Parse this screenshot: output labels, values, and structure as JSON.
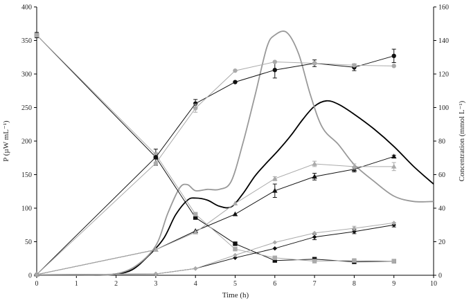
{
  "chart_data": {
    "type": "line",
    "title": "",
    "xlabel": "Time  (h)",
    "ylabel_left": "P (µW mL⁻¹)",
    "ylabel_right": "Concentration  (mmol L⁻¹)",
    "xlim": [
      0,
      10
    ],
    "ylim_left": [
      0,
      400
    ],
    "ylim_right": [
      0,
      160
    ],
    "x_ticks": [
      "0",
      "1",
      "2",
      "3",
      "4",
      "5",
      "6",
      "7",
      "8",
      "9",
      "10"
    ],
    "y_left_ticks": [
      "0",
      "50",
      "100",
      "150",
      "200",
      "250",
      "300",
      "350",
      "400"
    ],
    "y_right_ticks": [
      "0",
      "20",
      "40",
      "60",
      "80",
      "100",
      "120",
      "140",
      "160"
    ],
    "grid": false,
    "legend": "none",
    "thermogram_series": [
      {
        "color": "#000000",
        "axis": "left",
        "x": [
          0,
          1,
          1.5,
          2,
          2.4,
          2.8,
          3.2,
          3.5,
          3.8,
          4.0,
          4.3,
          4.6,
          4.9,
          5.2,
          5.5,
          5.8,
          6.1,
          6.4,
          6.7,
          7.0,
          7.3,
          7.6,
          8.0,
          8.5,
          9.0,
          9.5,
          10.0
        ],
        "y": [
          0,
          0,
          0,
          2,
          8,
          28,
          55,
          90,
          112,
          115,
          112,
          103,
          102,
          122,
          148,
          168,
          187,
          208,
          232,
          252,
          260,
          255,
          240,
          218,
          192,
          162,
          136
        ]
      },
      {
        "color": "#999999",
        "axis": "left",
        "x": [
          0,
          1,
          1.5,
          2,
          2.5,
          3.0,
          3.3,
          3.6,
          3.8,
          4.0,
          4.3,
          4.6,
          4.9,
          5.2,
          5.5,
          5.8,
          6.0,
          6.3,
          6.6,
          6.9,
          7.2,
          7.6,
          8.0,
          8.5,
          9.0,
          9.5,
          10.0
        ],
        "y": [
          0,
          0,
          0,
          2,
          14,
          44,
          92,
          130,
          135,
          126,
          128,
          128,
          140,
          198,
          268,
          340,
          358,
          362,
          330,
          268,
          220,
          195,
          165,
          140,
          118,
          110,
          110
        ]
      }
    ],
    "marker_series": [
      {
        "marker": "square",
        "color": "#111111",
        "axis": "left",
        "x": [
          0,
          3,
          4,
          5,
          6,
          7,
          8,
          9
        ],
        "y": [
          358,
          176,
          86,
          47,
          22,
          24,
          20,
          21
        ],
        "err": [
          4,
          12,
          0,
          0,
          0,
          0,
          0,
          0
        ]
      },
      {
        "marker": "square",
        "color": "#aaaaaa",
        "axis": "left",
        "x": [
          0,
          3,
          4,
          5,
          6,
          7,
          8,
          9
        ],
        "y": [
          358,
          180,
          91,
          39,
          26,
          21,
          22,
          21
        ],
        "err": [
          0,
          0,
          0,
          0,
          0,
          0,
          0,
          0
        ]
      },
      {
        "marker": "circle",
        "color": "#111111",
        "axis": "left",
        "x": [
          0,
          3,
          4,
          5,
          6,
          7,
          8,
          9
        ],
        "y": [
          1,
          176,
          256,
          288,
          306,
          316,
          310,
          327
        ],
        "err": [
          0,
          0,
          6,
          0,
          12,
          5,
          5,
          10
        ]
      },
      {
        "marker": "circle",
        "color": "#aaaaaa",
        "axis": "left",
        "x": [
          0,
          3,
          4,
          5,
          6,
          7,
          8,
          9
        ],
        "y": [
          1,
          167,
          249,
          305,
          318,
          316,
          313,
          312
        ],
        "err": [
          0,
          0,
          6,
          0,
          0,
          0,
          0,
          0
        ]
      },
      {
        "marker": "triangle",
        "color": "#111111",
        "axis": "left",
        "x": [
          0,
          3,
          4,
          5,
          6,
          7,
          8,
          9
        ],
        "y": [
          1,
          38,
          66,
          91,
          126,
          147,
          158,
          177
        ],
        "err": [
          0,
          0,
          0,
          0,
          10,
          5,
          4,
          2
        ]
      },
      {
        "marker": "triangle",
        "color": "#aaaaaa",
        "axis": "left",
        "x": [
          0,
          3,
          4,
          5,
          6,
          7,
          8,
          9
        ],
        "y": [
          1,
          38,
          64,
          107,
          144,
          166,
          162,
          162
        ],
        "err": [
          0,
          0,
          0,
          0,
          3,
          4,
          4,
          6
        ]
      },
      {
        "marker": "diamond",
        "color": "#111111",
        "axis": "left",
        "x": [
          0,
          3,
          4,
          5,
          6,
          7,
          8,
          9
        ],
        "y": [
          1,
          2,
          10,
          26,
          40,
          57,
          65,
          75
        ],
        "err": [
          0,
          0,
          0,
          0,
          0,
          4,
          3,
          3
        ]
      },
      {
        "marker": "diamond",
        "color": "#aaaaaa",
        "axis": "left",
        "x": [
          0,
          3,
          4,
          5,
          6,
          7,
          8,
          9
        ],
        "y": [
          1,
          2,
          10,
          30,
          49,
          63,
          70,
          78
        ],
        "err": [
          0,
          0,
          0,
          0,
          0,
          0,
          3,
          0
        ]
      }
    ]
  }
}
